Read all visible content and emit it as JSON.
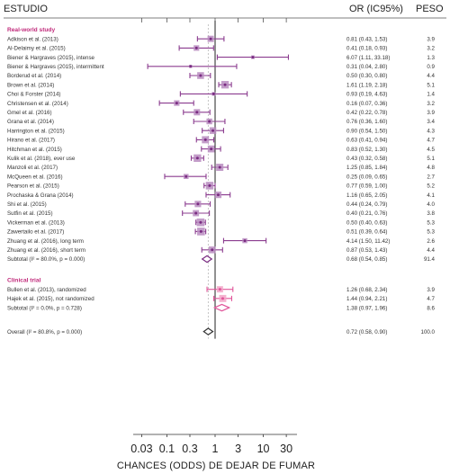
{
  "headers": {
    "study": "ESTUDIO",
    "or": "OR (IC95%)",
    "weight": "PESO"
  },
  "colors": {
    "ci_line": "#8b3c8f",
    "box": "#b98cc0",
    "point": "#7a2c82",
    "trial_box": "#f3a6c8",
    "trial_diamond": "#e0559a",
    "section_title": "#c0297a",
    "reference_line": "#b8b8b8",
    "null_line": "#222222"
  },
  "chart_data": {
    "type": "forest",
    "x_scale": "log",
    "xlabel": "CHANCES (ODDS) DE DEJAR DE FUMAR",
    "xticks": [
      "0.03",
      "0.1",
      "0.3",
      "1",
      "3",
      "10",
      "30"
    ],
    "xlim": [
      0.02,
      50
    ],
    "null_value": 1,
    "sections": [
      {
        "title": "Real-world study",
        "studies": [
          {
            "label": "Adkison et al. (2013)",
            "or": 0.81,
            "lo": 0.43,
            "hi": 1.53,
            "ci_text": "0.81 (0.43, 1.53)",
            "weight": "3.9"
          },
          {
            "label": "Al-Delaimy et al. (2015)",
            "or": 0.41,
            "lo": 0.18,
            "hi": 0.93,
            "ci_text": "0.41 (0.18, 0.93)",
            "weight": "3.2"
          },
          {
            "label": "Biener & Hargraves (2015), intense",
            "or": 6.07,
            "lo": 1.11,
            "hi": 33.18,
            "ci_text": "6.07 (1.11, 33.18)",
            "weight": "1.3"
          },
          {
            "label": "Biener & Hargraves (2015), intermittent",
            "or": 0.31,
            "lo": 0.04,
            "hi": 2.8,
            "ci_text": "0.31 (0.04, 2.80)",
            "weight": "0.9"
          },
          {
            "label": "Borderud et al. (2014)",
            "or": 0.5,
            "lo": 0.3,
            "hi": 0.8,
            "ci_text": "0.50 (0.30, 0.80)",
            "weight": "4.4"
          },
          {
            "label": "Brown et al. (2014)",
            "or": 1.61,
            "lo": 1.19,
            "hi": 2.18,
            "ci_text": "1.61 (1.19, 2.18)",
            "weight": "5.1"
          },
          {
            "label": "Choi & Forster (2014)",
            "or": 0.93,
            "lo": 0.19,
            "hi": 4.63,
            "ci_text": "0.93 (0.19, 4.63)",
            "weight": "1.4"
          },
          {
            "label": "Christensen et al. (2014)",
            "or": 0.16,
            "lo": 0.07,
            "hi": 0.36,
            "ci_text": "0.16 (0.07, 0.36)",
            "weight": "3.2"
          },
          {
            "label": "Gmel et al. (2016)",
            "or": 0.42,
            "lo": 0.22,
            "hi": 0.78,
            "ci_text": "0.42 (0.22, 0.78)",
            "weight": "3.9"
          },
          {
            "label": "Grana et al. (2014)",
            "or": 0.76,
            "lo": 0.36,
            "hi": 1.6,
            "ci_text": "0.76 (0.36, 1.60)",
            "weight": "3.4"
          },
          {
            "label": "Harrington et al. (2015)",
            "or": 0.9,
            "lo": 0.54,
            "hi": 1.5,
            "ci_text": "0.90 (0.54, 1.50)",
            "weight": "4.3"
          },
          {
            "label": "Hirano et al. (2017)",
            "or": 0.63,
            "lo": 0.41,
            "hi": 0.94,
            "ci_text": "0.63 (0.41, 0.94)",
            "weight": "4.7"
          },
          {
            "label": "Hitchman et al. (2015)",
            "or": 0.83,
            "lo": 0.52,
            "hi": 1.3,
            "ci_text": "0.83 (0.52, 1.30)",
            "weight": "4.5"
          },
          {
            "label": "Kulik et al. (2018), ever use",
            "or": 0.43,
            "lo": 0.32,
            "hi": 0.58,
            "ci_text": "0.43 (0.32, 0.58)",
            "weight": "5.1"
          },
          {
            "label": "Manzoli et al. (2017)",
            "or": 1.25,
            "lo": 0.85,
            "hi": 1.84,
            "ci_text": "1.25 (0.85, 1.84)",
            "weight": "4.8"
          },
          {
            "label": "McQueen et al. (2016)",
            "or": 0.25,
            "lo": 0.09,
            "hi": 0.65,
            "ci_text": "0.25 (0.09, 0.65)",
            "weight": "2.7"
          },
          {
            "label": "Pearson et al. (2015)",
            "or": 0.77,
            "lo": 0.59,
            "hi": 1.0,
            "ci_text": "0.77 (0.59, 1.00)",
            "weight": "5.2"
          },
          {
            "label": "Prochaska & Grana (2014)",
            "or": 1.16,
            "lo": 0.65,
            "hi": 2.05,
            "ci_text": "1.16 (0.65, 2.05)",
            "weight": "4.1"
          },
          {
            "label": "Shi et al. (2015)",
            "or": 0.44,
            "lo": 0.24,
            "hi": 0.79,
            "ci_text": "0.44 (0.24, 0.79)",
            "weight": "4.0"
          },
          {
            "label": "Sutfin et al. (2015)",
            "or": 0.4,
            "lo": 0.21,
            "hi": 0.76,
            "ci_text": "0.40 (0.21, 0.76)",
            "weight": "3.8"
          },
          {
            "label": "Vickerman et al. (2013)",
            "or": 0.5,
            "lo": 0.4,
            "hi": 0.63,
            "ci_text": "0.50 (0.40, 0.63)",
            "weight": "5.3"
          },
          {
            "label": "Zawertailo et al. (2017)",
            "or": 0.51,
            "lo": 0.39,
            "hi": 0.64,
            "ci_text": "0.51 (0.39, 0.64)",
            "weight": "5.3"
          },
          {
            "label": "Zhuang et al. (2016), long term",
            "or": 4.14,
            "lo": 1.5,
            "hi": 11.42,
            "ci_text": "4.14 (1.50, 11.42)",
            "weight": "2.6"
          },
          {
            "label": "Zhuang et al. (2016), short term",
            "or": 0.87,
            "lo": 0.53,
            "hi": 1.43,
            "ci_text": "0.87 (0.53, 1.43)",
            "weight": "4.4"
          }
        ],
        "subtotal": {
          "label": "Subtotal  (I² = 80.0%, p = 0.000)",
          "or": 0.68,
          "lo": 0.54,
          "hi": 0.85,
          "ci_text": "0.68 (0.54, 0.85)",
          "weight": "91.4"
        }
      },
      {
        "title": "Clinical trial",
        "studies": [
          {
            "label": "Bullen et al. (2013), randomized",
            "or": 1.26,
            "lo": 0.68,
            "hi": 2.34,
            "ci_text": "1.26 (0.68, 2.34)",
            "weight": "3.9"
          },
          {
            "label": "Hajek et al. (2015), not randomized",
            "or": 1.44,
            "lo": 0.94,
            "hi": 2.21,
            "ci_text": "1.44 (0.94, 2.21)",
            "weight": "4.7"
          }
        ],
        "subtotal": {
          "label": "Subtotal  (I² = 0.0%, p = 0.728)",
          "or": 1.38,
          "lo": 0.97,
          "hi": 1.96,
          "ci_text": "1.38 (0.97, 1.96)",
          "weight": "8.6"
        }
      }
    ],
    "overall": {
      "label": "Overall  (I² = 80.8%, p = 0.000)",
      "or": 0.72,
      "lo": 0.58,
      "hi": 0.9,
      "ci_text": "0.72 (0.58, 0.90)",
      "weight": "100.0"
    }
  }
}
